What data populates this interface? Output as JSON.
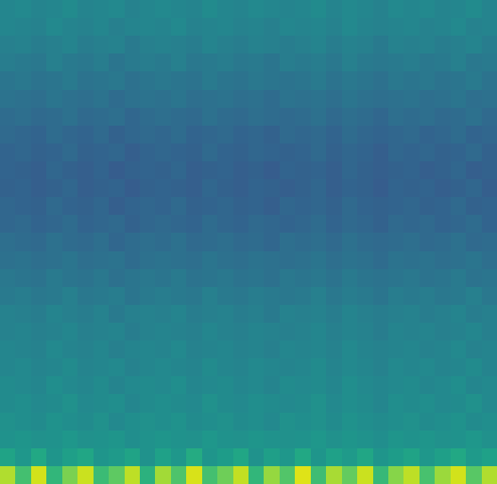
{
  "chart_data": {
    "type": "heatmap",
    "color": "viridis",
    "tick_labels": false,
    "xlim": [
      0,
      32
    ],
    "ylim": [
      0,
      27
    ],
    "color_range": [
      0,
      100
    ],
    "cells": [
      [
        88,
        70,
        93,
        66,
        80,
        92,
        68,
        75,
        90,
        64,
        86,
        72,
        94,
        70,
        78,
        91,
        66,
        84,
        73,
        95,
        69,
        87,
        76,
        92,
        67,
        82,
        90,
        71,
        85,
        93,
        74,
        88
      ],
      [
        58,
        53,
        60,
        52,
        56,
        59,
        52,
        54,
        58,
        51,
        57,
        53,
        61,
        52,
        55,
        59,
        51,
        56,
        53,
        60,
        52,
        57,
        54,
        59,
        52,
        55,
        58,
        53,
        56,
        60,
        54,
        57
      ],
      [
        51,
        52,
        50,
        51,
        53,
        50,
        51,
        52,
        49,
        51,
        52,
        51,
        50,
        53,
        51,
        50,
        52,
        51,
        50,
        51,
        53,
        50,
        52,
        51,
        49,
        52,
        51,
        52,
        50,
        51,
        53,
        50
      ],
      [
        50,
        49,
        48,
        51,
        49,
        48,
        50,
        47,
        49,
        50,
        49,
        51,
        48,
        49,
        50,
        48,
        49,
        47,
        50,
        49,
        50,
        48,
        51,
        49,
        48,
        49,
        50,
        48,
        49,
        51,
        48,
        49
      ],
      [
        48,
        49,
        47,
        48,
        50,
        47,
        48,
        49,
        46,
        48,
        49,
        48,
        47,
        50,
        48,
        47,
        49,
        48,
        47,
        48,
        50,
        47,
        49,
        48,
        46,
        49,
        48,
        49,
        47,
        48,
        50,
        47
      ],
      [
        48,
        47,
        46,
        49,
        47,
        46,
        48,
        45,
        47,
        48,
        47,
        49,
        46,
        47,
        48,
        46,
        47,
        45,
        48,
        47,
        48,
        46,
        49,
        47,
        46,
        47,
        48,
        46,
        47,
        49,
        46,
        47
      ],
      [
        46,
        47,
        45,
        46,
        48,
        45,
        46,
        47,
        44,
        46,
        47,
        46,
        45,
        48,
        46,
        45,
        47,
        46,
        45,
        46,
        48,
        45,
        47,
        46,
        44,
        47,
        46,
        47,
        45,
        46,
        48,
        45
      ],
      [
        46,
        45,
        44,
        47,
        45,
        44,
        46,
        43,
        45,
        46,
        45,
        47,
        44,
        45,
        46,
        44,
        45,
        43,
        46,
        45,
        46,
        44,
        47,
        45,
        44,
        45,
        46,
        44,
        45,
        47,
        44,
        45
      ],
      [
        44,
        45,
        43,
        44,
        46,
        43,
        44,
        45,
        42,
        44,
        45,
        44,
        43,
        46,
        44,
        43,
        45,
        44,
        43,
        44,
        46,
        43,
        45,
        44,
        42,
        45,
        44,
        45,
        43,
        44,
        46,
        43
      ],
      [
        44,
        43,
        42,
        45,
        43,
        42,
        44,
        41,
        43,
        44,
        43,
        45,
        42,
        43,
        44,
        42,
        43,
        41,
        44,
        43,
        44,
        42,
        45,
        43,
        42,
        43,
        44,
        42,
        43,
        45,
        42,
        43
      ],
      [
        41,
        42,
        40,
        41,
        43,
        40,
        41,
        42,
        39,
        41,
        42,
        41,
        40,
        43,
        41,
        40,
        42,
        41,
        40,
        41,
        43,
        40,
        42,
        41,
        39,
        42,
        41,
        42,
        40,
        41,
        43,
        40
      ],
      [
        40,
        39,
        38,
        41,
        39,
        38,
        40,
        37,
        39,
        40,
        39,
        41,
        38,
        39,
        40,
        38,
        39,
        37,
        40,
        39,
        40,
        38,
        41,
        39,
        38,
        39,
        40,
        38,
        39,
        41,
        38,
        39
      ],
      [
        37,
        38,
        36,
        37,
        39,
        36,
        37,
        38,
        35,
        37,
        38,
        37,
        36,
        39,
        37,
        36,
        38,
        37,
        36,
        37,
        39,
        36,
        38,
        37,
        35,
        38,
        37,
        38,
        36,
        37,
        39,
        36
      ],
      [
        36,
        35,
        34,
        37,
        35,
        34,
        36,
        33,
        35,
        36,
        35,
        37,
        34,
        35,
        36,
        34,
        35,
        33,
        36,
        35,
        36,
        34,
        37,
        35,
        34,
        35,
        36,
        34,
        35,
        37,
        34,
        35
      ],
      [
        33,
        34,
        32,
        33,
        35,
        32,
        33,
        34,
        31,
        33,
        34,
        33,
        32,
        35,
        33,
        32,
        34,
        33,
        32,
        33,
        35,
        32,
        34,
        33,
        31,
        34,
        33,
        34,
        32,
        33,
        35,
        32
      ],
      [
        33,
        32,
        31,
        34,
        32,
        31,
        33,
        30,
        32,
        33,
        32,
        34,
        31,
        32,
        33,
        31,
        32,
        30,
        33,
        32,
        33,
        31,
        34,
        32,
        31,
        32,
        33,
        31,
        32,
        34,
        31,
        32
      ],
      [
        31,
        32,
        30,
        31,
        33,
        30,
        31,
        32,
        29,
        31,
        32,
        31,
        30,
        33,
        31,
        30,
        32,
        31,
        30,
        31,
        33,
        30,
        32,
        31,
        29,
        32,
        31,
        32,
        30,
        31,
        33,
        30
      ],
      [
        32,
        31,
        30,
        33,
        31,
        30,
        32,
        29,
        31,
        32,
        31,
        33,
        30,
        31,
        32,
        30,
        31,
        29,
        32,
        31,
        32,
        30,
        33,
        31,
        30,
        31,
        32,
        30,
        31,
        33,
        30,
        31
      ],
      [
        32,
        33,
        31,
        32,
        34,
        31,
        32,
        33,
        30,
        32,
        33,
        32,
        31,
        34,
        32,
        31,
        33,
        32,
        31,
        32,
        34,
        31,
        33,
        32,
        30,
        33,
        32,
        33,
        31,
        32,
        34,
        31
      ],
      [
        34,
        33,
        32,
        35,
        33,
        32,
        34,
        31,
        33,
        34,
        33,
        35,
        32,
        33,
        34,
        32,
        33,
        31,
        34,
        33,
        34,
        32,
        35,
        33,
        32,
        33,
        34,
        32,
        33,
        35,
        32,
        33
      ],
      [
        35,
        36,
        34,
        35,
        37,
        34,
        35,
        36,
        33,
        35,
        36,
        35,
        34,
        37,
        35,
        34,
        36,
        35,
        34,
        35,
        37,
        34,
        36,
        35,
        33,
        36,
        35,
        36,
        34,
        35,
        37,
        34
      ],
      [
        38,
        37,
        36,
        39,
        37,
        36,
        38,
        35,
        37,
        38,
        37,
        39,
        36,
        37,
        38,
        36,
        37,
        35,
        38,
        37,
        38,
        36,
        39,
        37,
        36,
        37,
        38,
        36,
        37,
        39,
        36,
        37
      ],
      [
        39,
        40,
        38,
        39,
        41,
        38,
        39,
        40,
        37,
        39,
        40,
        39,
        38,
        41,
        39,
        38,
        40,
        39,
        38,
        39,
        41,
        38,
        40,
        39,
        37,
        40,
        39,
        40,
        38,
        39,
        41,
        38
      ],
      [
        42,
        41,
        40,
        43,
        41,
        40,
        42,
        39,
        41,
        42,
        41,
        43,
        40,
        41,
        42,
        40,
        41,
        39,
        42,
        41,
        42,
        40,
        43,
        41,
        40,
        41,
        42,
        40,
        41,
        43,
        40,
        41
      ],
      [
        43,
        44,
        42,
        43,
        45,
        42,
        43,
        44,
        41,
        43,
        44,
        43,
        42,
        45,
        43,
        42,
        44,
        43,
        42,
        43,
        45,
        42,
        44,
        43,
        41,
        44,
        43,
        44,
        42,
        43,
        45,
        42
      ],
      [
        46,
        45,
        44,
        47,
        45,
        44,
        46,
        43,
        45,
        46,
        45,
        47,
        44,
        45,
        46,
        44,
        45,
        43,
        46,
        45,
        46,
        44,
        47,
        45,
        44,
        45,
        46,
        44,
        45,
        47,
        44,
        45
      ],
      [
        46,
        47,
        45,
        46,
        48,
        45,
        46,
        47,
        44,
        46,
        47,
        46,
        45,
        48,
        46,
        45,
        47,
        46,
        45,
        46,
        48,
        45,
        47,
        46,
        44,
        47,
        46,
        47,
        45,
        46,
        48,
        45
      ]
    ]
  }
}
